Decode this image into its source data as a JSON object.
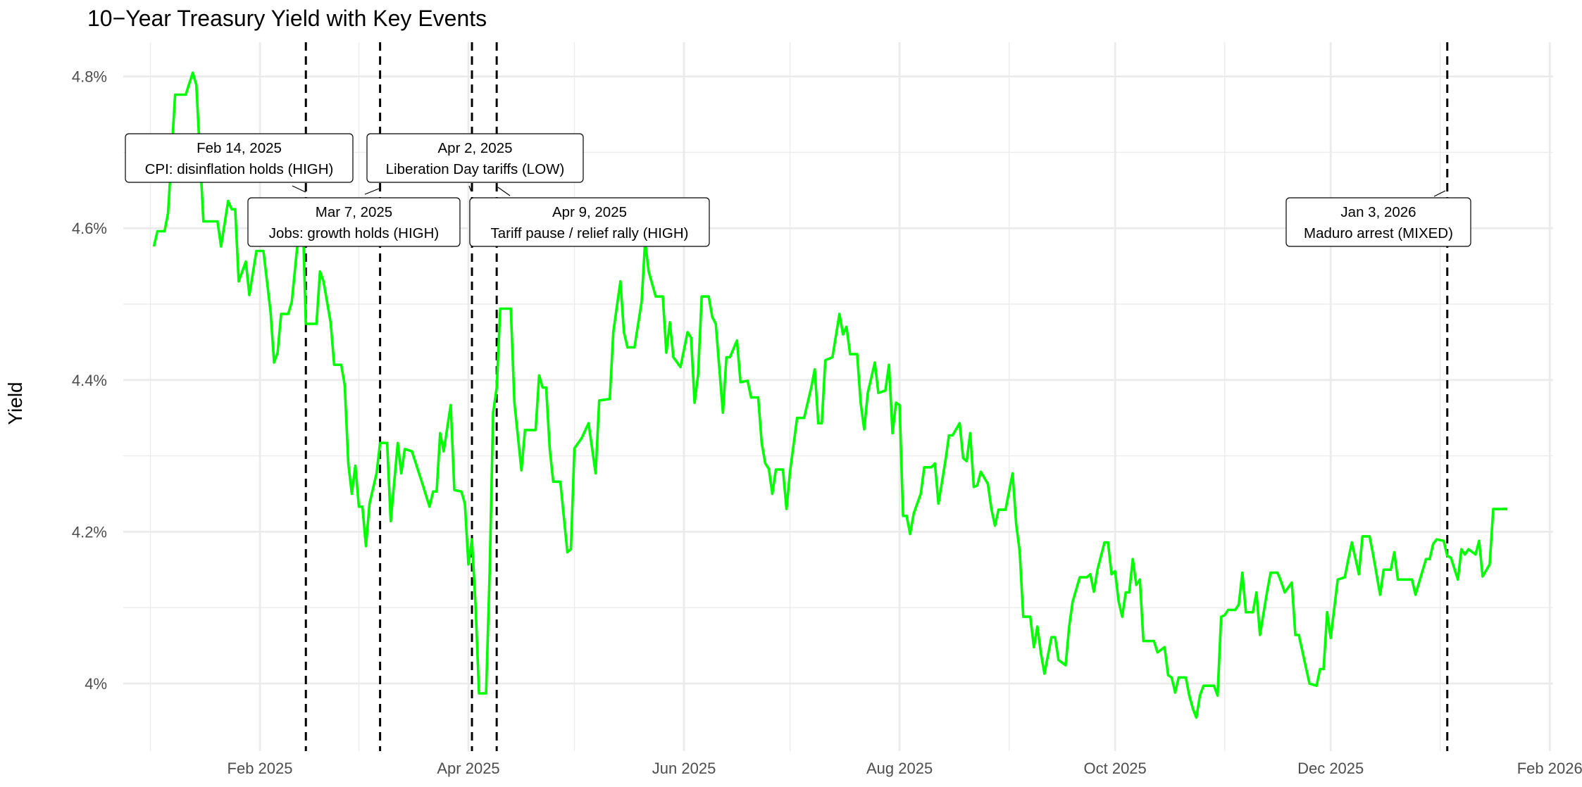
{
  "chart_data": {
    "type": "line",
    "title": "10−Year Treasury Yield with Key Events",
    "xlabel": "",
    "ylabel": "Yield",
    "x_unit": "days since 2025-01-01",
    "ylim": [
      3.93,
      4.87
    ],
    "xlim_days": [
      -8,
      397
    ],
    "grid": true,
    "line_color": "#00ff00",
    "event_line_color": "#000000",
    "y_ticks": [
      {
        "value": 4.0,
        "label": "4%"
      },
      {
        "value": 4.2,
        "label": "4.2%"
      },
      {
        "value": 4.4,
        "label": "4.4%"
      },
      {
        "value": 4.6,
        "label": "4.6%"
      },
      {
        "value": 4.8,
        "label": "4.8%"
      }
    ],
    "y_minor": [
      4.1,
      4.3,
      4.5,
      4.7
    ],
    "x_ticks": [
      {
        "day": 31,
        "label": "Feb 2025"
      },
      {
        "day": 90,
        "label": "Apr 2025"
      },
      {
        "day": 151,
        "label": "Jun 2025"
      },
      {
        "day": 212,
        "label": "Aug 2025"
      },
      {
        "day": 273,
        "label": "Oct 2025"
      },
      {
        "day": 334,
        "label": "Dec 2025"
      },
      {
        "day": 396,
        "label": "Feb 2026"
      }
    ],
    "x_minor_days": [
      0,
      59,
      120,
      181,
      243,
      304,
      365
    ],
    "events": [
      {
        "day": 44,
        "date": "Feb 14, 2025",
        "text": "CPI: disinflation holds (HIGH)"
      },
      {
        "day": 65,
        "date": "Mar 7, 2025",
        "text": "Jobs: growth holds (HIGH)"
      },
      {
        "day": 91,
        "date": "Apr 2, 2025",
        "text": "Liberation Day tariffs (LOW)"
      },
      {
        "day": 98,
        "date": "Apr 9, 2025",
        "text": "Tariff pause / relief rally (HIGH)"
      },
      {
        "day": 367,
        "date": "Jan 3, 2026",
        "text": "Maduro arrest (MIXED)"
      }
    ],
    "series": [
      {
        "name": "10-Year Treasury Yield",
        "x_days": [
          1,
          2,
          4,
          5,
          7,
          10,
          12,
          13,
          15,
          17,
          19,
          20,
          22,
          23,
          24,
          25,
          27,
          28,
          30,
          32,
          34,
          35,
          36,
          37,
          39,
          40,
          42,
          43,
          44,
          47,
          48,
          49,
          51,
          52,
          54,
          55,
          56,
          57,
          58,
          59,
          60,
          61,
          62,
          64,
          65,
          67,
          68,
          70,
          71,
          72,
          74,
          77,
          79,
          80,
          81,
          82,
          83,
          85,
          86,
          88,
          89,
          90,
          91,
          92,
          93,
          95,
          96,
          97,
          98,
          99,
          102,
          103,
          105,
          106,
          109,
          110,
          111,
          112,
          113,
          114,
          116,
          118,
          119,
          120,
          122,
          124,
          126,
          127,
          130,
          131,
          133,
          134,
          135,
          137,
          139,
          140,
          141,
          143,
          145,
          146,
          147,
          148,
          150,
          152,
          153,
          154,
          155,
          156,
          158,
          159,
          160,
          162,
          163,
          164,
          166,
          167,
          169,
          170,
          172,
          173,
          174,
          175,
          176,
          177,
          179,
          180,
          181,
          183,
          185,
          187,
          188,
          189,
          190,
          191,
          193,
          195,
          196,
          197,
          198,
          200,
          201,
          202,
          203,
          204,
          205,
          206,
          208,
          209,
          210,
          211,
          212,
          213,
          214,
          215,
          216,
          218,
          219,
          221,
          222,
          223,
          225,
          226,
          227,
          229,
          230,
          231,
          232,
          233,
          234,
          235,
          237,
          238,
          239,
          240,
          242,
          244,
          245,
          246,
          247,
          249,
          250,
          251,
          252,
          253,
          255,
          256,
          257,
          259,
          260,
          261,
          263,
          265,
          266,
          267,
          268,
          269,
          270,
          271,
          272,
          273,
          274,
          275,
          276,
          277,
          278,
          279,
          280,
          281,
          284,
          285,
          287,
          288,
          289,
          290,
          291,
          293,
          294,
          295,
          296,
          297,
          298,
          301,
          302,
          303,
          304,
          305,
          307,
          308,
          309,
          310,
          312,
          313,
          314,
          316,
          317,
          319,
          320,
          321,
          323,
          324,
          325,
          327,
          328,
          330,
          331,
          332,
          333,
          334,
          336,
          338,
          339,
          340,
          342,
          343,
          345,
          346,
          348,
          349,
          351,
          352,
          353,
          355,
          357,
          358,
          359,
          361,
          362,
          363,
          364,
          366,
          367,
          368,
          370,
          371,
          372,
          373,
          375,
          376,
          377,
          379,
          380,
          381,
          384
        ],
        "values": [
          4.576,
          4.596,
          4.596,
          4.62,
          4.776,
          4.776,
          4.805,
          4.789,
          4.609,
          4.609,
          4.609,
          4.576,
          4.636,
          4.625,
          4.625,
          4.53,
          4.556,
          4.512,
          4.57,
          4.57,
          4.49,
          4.423,
          4.436,
          4.487,
          4.487,
          4.503,
          4.596,
          4.636,
          4.474,
          4.474,
          4.543,
          4.53,
          4.476,
          4.42,
          4.42,
          4.393,
          4.29,
          4.25,
          4.287,
          4.233,
          4.233,
          4.181,
          4.237,
          4.277,
          4.317,
          4.317,
          4.214,
          4.317,
          4.277,
          4.309,
          4.306,
          4.263,
          4.233,
          4.253,
          4.253,
          4.33,
          4.306,
          4.367,
          4.255,
          4.253,
          4.237,
          4.157,
          4.19,
          4.104,
          3.987,
          3.987,
          4.144,
          4.357,
          4.39,
          4.494,
          4.494,
          4.37,
          4.281,
          4.334,
          4.334,
          4.406,
          4.39,
          4.39,
          4.31,
          4.266,
          4.266,
          4.173,
          4.177,
          4.31,
          4.323,
          4.343,
          4.277,
          4.373,
          4.375,
          4.463,
          4.53,
          4.463,
          4.443,
          4.443,
          4.503,
          4.583,
          4.543,
          4.51,
          4.51,
          4.436,
          4.476,
          4.43,
          4.417,
          4.463,
          4.456,
          4.37,
          4.407,
          4.51,
          4.51,
          4.483,
          4.474,
          4.357,
          4.43,
          4.43,
          4.452,
          4.397,
          4.399,
          4.377,
          4.377,
          4.317,
          4.29,
          4.283,
          4.25,
          4.282,
          4.282,
          4.23,
          4.279,
          4.35,
          4.35,
          4.39,
          4.414,
          4.343,
          4.343,
          4.426,
          4.43,
          4.487,
          4.46,
          4.47,
          4.434,
          4.434,
          4.37,
          4.335,
          4.383,
          4.403,
          4.423,
          4.383,
          4.386,
          4.42,
          4.33,
          4.37,
          4.367,
          4.221,
          4.221,
          4.197,
          4.224,
          4.25,
          4.285,
          4.285,
          4.29,
          4.237,
          4.294,
          4.327,
          4.327,
          4.343,
          4.297,
          4.293,
          4.33,
          4.259,
          4.261,
          4.279,
          4.263,
          4.23,
          4.208,
          4.229,
          4.229,
          4.277,
          4.21,
          4.174,
          4.088,
          4.088,
          4.048,
          4.075,
          4.04,
          4.013,
          4.061,
          4.061,
          4.031,
          4.024,
          4.075,
          4.108,
          4.14,
          4.14,
          4.144,
          4.121,
          4.15,
          4.168,
          4.186,
          4.186,
          4.144,
          4.148,
          4.108,
          4.088,
          4.12,
          4.12,
          4.164,
          4.13,
          4.137,
          4.056,
          4.056,
          4.041,
          4.048,
          4.011,
          4.008,
          3.988,
          4.008,
          4.008,
          3.984,
          3.967,
          3.955,
          3.984,
          3.997,
          3.997,
          3.984,
          4.088,
          4.09,
          4.097,
          4.097,
          4.104,
          4.146,
          4.094,
          4.094,
          4.12,
          4.064,
          4.121,
          4.146,
          4.146,
          4.134,
          4.12,
          4.133,
          4.064,
          4.064,
          4.021,
          4.0,
          3.997,
          4.019,
          4.019,
          4.094,
          4.06,
          4.137,
          4.14,
          4.164,
          4.186,
          4.144,
          4.194,
          4.194,
          4.17,
          4.117,
          4.15,
          4.15,
          4.173,
          4.137,
          4.137,
          4.137,
          4.117,
          4.133,
          4.164,
          4.164,
          4.184,
          4.19,
          4.188,
          4.168,
          4.166,
          4.137,
          4.177,
          4.17,
          4.177,
          4.17,
          4.188,
          4.141,
          4.157,
          4.23,
          4.23,
          4.23
        ]
      }
    ]
  }
}
